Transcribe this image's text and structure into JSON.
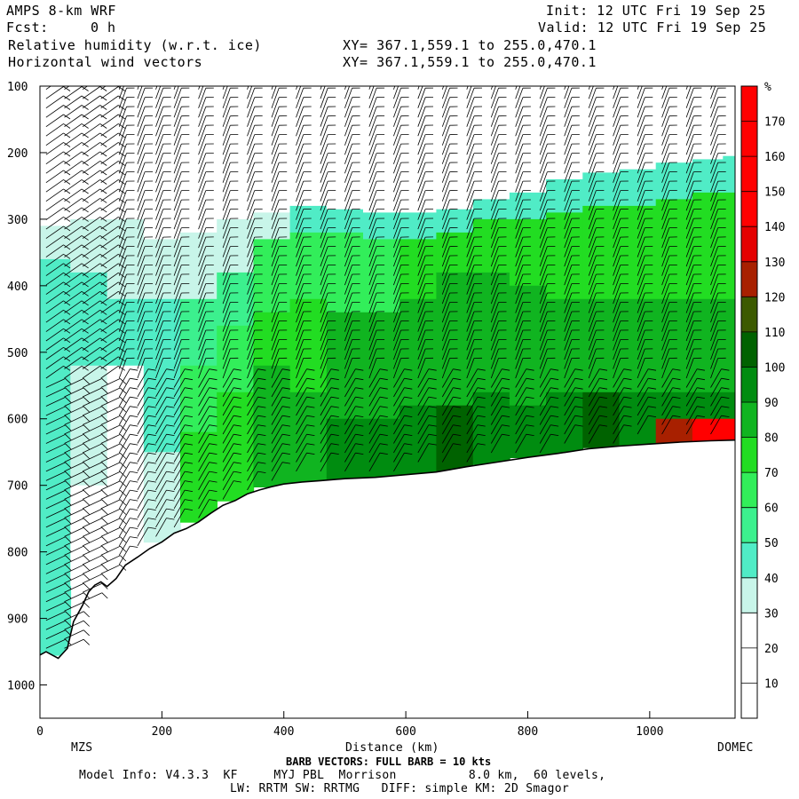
{
  "header": {
    "model": "AMPS 8-km WRF",
    "fcst_label": "Fcst:",
    "fcst_value": "0 h",
    "field1": "Relative humidity (w.r.t. ice)",
    "field2": "Horizontal wind vectors",
    "xy1": "XY= 367.1,559.1 to 255.0,470.1",
    "xy2": "XY= 367.1,559.1 to 255.0,470.1",
    "init": "Init: 12 UTC Fri 19 Sep 25",
    "valid": "Valid: 12 UTC Fri 19 Sep 25"
  },
  "footer": {
    "barb_note": "BARB VECTORS: FULL BARB = 10 kts",
    "model_info": "Model Info: V4.3.3  KF     MYJ PBL  Morrison          8.0 km,  60 levels,",
    "physics": "LW: RRTM SW: RRTMG   DIFF: simple KM: 2D Smagor"
  },
  "colors": {
    "bins": [
      "#ffffff",
      "#ffffff",
      "#ffffff",
      "#c8f5e9",
      "#50ecc6",
      "#3cf08e",
      "#32ee5a",
      "#22dd22",
      "#10b420",
      "#008c10",
      "#006200",
      "#3c5a00",
      "#a82000",
      "#e40000",
      "#ff0000",
      "#ff0000",
      "#ff0000",
      "#ff0000"
    ],
    "terrain_line": "#000000"
  },
  "chart_data": {
    "type": "heatmap",
    "title": "Relative humidity (w.r.t. ice)",
    "xlabel": "Distance (km)",
    "ylabel": "",
    "x_ticks": [
      0,
      200,
      400,
      600,
      800,
      1000
    ],
    "xlim": [
      0,
      1140
    ],
    "y_ticks": [
      100,
      200,
      300,
      400,
      500,
      600,
      700,
      800,
      900,
      1000
    ],
    "ylim": [
      1050,
      100
    ],
    "x_end_labels": [
      "MZS",
      "DOMEC"
    ],
    "colorbar": {
      "unit": "%",
      "levels": [
        10,
        20,
        30,
        40,
        50,
        60,
        70,
        80,
        90,
        100,
        110,
        120,
        130,
        140,
        150,
        160,
        170
      ]
    },
    "terrain_surface_hpa": [
      [
        0,
        955
      ],
      [
        10,
        950
      ],
      [
        20,
        955
      ],
      [
        30,
        960
      ],
      [
        45,
        945
      ],
      [
        55,
        905
      ],
      [
        70,
        880
      ],
      [
        80,
        860
      ],
      [
        90,
        850
      ],
      [
        100,
        845
      ],
      [
        110,
        852
      ],
      [
        125,
        840
      ],
      [
        140,
        820
      ],
      [
        160,
        808
      ],
      [
        180,
        795
      ],
      [
        200,
        785
      ],
      [
        220,
        772
      ],
      [
        240,
        765
      ],
      [
        260,
        755
      ],
      [
        280,
        742
      ],
      [
        300,
        730
      ],
      [
        320,
        723
      ],
      [
        340,
        713
      ],
      [
        360,
        707
      ],
      [
        380,
        702
      ],
      [
        400,
        698
      ],
      [
        430,
        695
      ],
      [
        460,
        693
      ],
      [
        500,
        690
      ],
      [
        550,
        688
      ],
      [
        600,
        684
      ],
      [
        650,
        680
      ],
      [
        700,
        672
      ],
      [
        750,
        665
      ],
      [
        800,
        658
      ],
      [
        850,
        652
      ],
      [
        900,
        645
      ],
      [
        950,
        641
      ],
      [
        1000,
        638
      ],
      [
        1050,
        635
      ],
      [
        1100,
        633
      ],
      [
        1140,
        632
      ]
    ],
    "moist_top_hpa": [
      [
        0,
        310
      ],
      [
        60,
        300
      ],
      [
        120,
        300
      ],
      [
        200,
        330
      ],
      [
        260,
        320
      ],
      [
        300,
        300
      ],
      [
        380,
        290
      ],
      [
        460,
        280
      ],
      [
        560,
        290
      ],
      [
        640,
        290
      ],
      [
        700,
        280
      ],
      [
        780,
        260
      ],
      [
        860,
        240
      ],
      [
        940,
        225
      ],
      [
        1000,
        220
      ],
      [
        1060,
        210
      ],
      [
        1140,
        205
      ]
    ],
    "rh_profiles": [
      {
        "x": 20,
        "layers": [
          [
            100,
            310,
            10
          ],
          [
            310,
            360,
            35
          ],
          [
            360,
            600,
            45
          ],
          [
            600,
            955,
            40
          ]
        ]
      },
      {
        "x": 80,
        "layers": [
          [
            100,
            300,
            10
          ],
          [
            300,
            380,
            35
          ],
          [
            380,
            520,
            45
          ],
          [
            520,
            700,
            35
          ],
          [
            700,
            850,
            15
          ]
        ]
      },
      {
        "x": 140,
        "layers": [
          [
            100,
            300,
            10
          ],
          [
            300,
            420,
            35
          ],
          [
            420,
            520,
            45
          ],
          [
            520,
            820,
            20
          ]
        ]
      },
      {
        "x": 200,
        "layers": [
          [
            100,
            330,
            10
          ],
          [
            330,
            420,
            30
          ],
          [
            420,
            500,
            45
          ],
          [
            500,
            650,
            40
          ],
          [
            650,
            785,
            35
          ]
        ]
      },
      {
        "x": 260,
        "layers": [
          [
            100,
            320,
            10
          ],
          [
            320,
            420,
            35
          ],
          [
            420,
            520,
            55
          ],
          [
            520,
            620,
            65
          ],
          [
            620,
            755,
            75
          ]
        ]
      },
      {
        "x": 320,
        "layers": [
          [
            100,
            300,
            10
          ],
          [
            300,
            380,
            35
          ],
          [
            380,
            460,
            55
          ],
          [
            460,
            560,
            65
          ],
          [
            560,
            723,
            75
          ]
        ]
      },
      {
        "x": 380,
        "layers": [
          [
            100,
            290,
            10
          ],
          [
            290,
            330,
            35
          ],
          [
            330,
            440,
            65
          ],
          [
            440,
            520,
            75
          ],
          [
            520,
            702,
            85
          ]
        ]
      },
      {
        "x": 440,
        "layers": [
          [
            100,
            280,
            10
          ],
          [
            280,
            320,
            45
          ],
          [
            320,
            420,
            65
          ],
          [
            420,
            560,
            75
          ],
          [
            560,
            695,
            85
          ]
        ]
      },
      {
        "x": 500,
        "layers": [
          [
            100,
            285,
            10
          ],
          [
            285,
            320,
            45
          ],
          [
            320,
            440,
            65
          ],
          [
            440,
            600,
            85
          ],
          [
            600,
            690,
            95
          ]
        ]
      },
      {
        "x": 560,
        "layers": [
          [
            100,
            290,
            10
          ],
          [
            290,
            330,
            45
          ],
          [
            330,
            440,
            65
          ],
          [
            440,
            600,
            85
          ],
          [
            600,
            688,
            95
          ]
        ]
      },
      {
        "x": 620,
        "layers": [
          [
            100,
            290,
            10
          ],
          [
            290,
            330,
            45
          ],
          [
            330,
            420,
            75
          ],
          [
            420,
            580,
            85
          ],
          [
            580,
            684,
            95
          ]
        ]
      },
      {
        "x": 680,
        "layers": [
          [
            100,
            285,
            10
          ],
          [
            285,
            320,
            45
          ],
          [
            320,
            380,
            75
          ],
          [
            380,
            580,
            85
          ],
          [
            580,
            680,
            105
          ]
        ]
      },
      {
        "x": 740,
        "layers": [
          [
            100,
            270,
            10
          ],
          [
            270,
            300,
            45
          ],
          [
            300,
            380,
            75
          ],
          [
            380,
            560,
            85
          ],
          [
            560,
            668,
            95
          ]
        ]
      },
      {
        "x": 800,
        "layers": [
          [
            100,
            260,
            10
          ],
          [
            260,
            300,
            45
          ],
          [
            300,
            400,
            75
          ],
          [
            400,
            580,
            85
          ],
          [
            580,
            658,
            95
          ]
        ]
      },
      {
        "x": 860,
        "layers": [
          [
            100,
            240,
            10
          ],
          [
            240,
            290,
            45
          ],
          [
            290,
            420,
            75
          ],
          [
            420,
            560,
            85
          ],
          [
            560,
            652,
            95
          ]
        ]
      },
      {
        "x": 920,
        "layers": [
          [
            100,
            230,
            10
          ],
          [
            230,
            280,
            45
          ],
          [
            280,
            420,
            75
          ],
          [
            420,
            560,
            85
          ],
          [
            560,
            643,
            105
          ]
        ]
      },
      {
        "x": 980,
        "layers": [
          [
            100,
            225,
            10
          ],
          [
            225,
            280,
            45
          ],
          [
            280,
            420,
            75
          ],
          [
            420,
            560,
            85
          ],
          [
            560,
            640,
            95
          ]
        ]
      },
      {
        "x": 1040,
        "layers": [
          [
            100,
            215,
            10
          ],
          [
            215,
            270,
            45
          ],
          [
            270,
            420,
            75
          ],
          [
            420,
            560,
            85
          ],
          [
            560,
            600,
            95
          ],
          [
            600,
            636,
            125
          ]
        ]
      },
      {
        "x": 1100,
        "layers": [
          [
            100,
            210,
            10
          ],
          [
            210,
            260,
            45
          ],
          [
            260,
            420,
            75
          ],
          [
            420,
            560,
            85
          ],
          [
            560,
            600,
            95
          ],
          [
            600,
            633,
            145
          ]
        ]
      },
      {
        "x": 1140,
        "layers": [
          [
            100,
            205,
            10
          ],
          [
            205,
            260,
            45
          ],
          [
            260,
            420,
            75
          ],
          [
            420,
            560,
            85
          ],
          [
            560,
            600,
            95
          ],
          [
            600,
            632,
            155
          ]
        ]
      }
    ],
    "wind_barb_columns_km": [
      10,
      40,
      70,
      100,
      130,
      160,
      190,
      220,
      260,
      300,
      340,
      380,
      420,
      460,
      500,
      540,
      580,
      620,
      660,
      700,
      740,
      780,
      820,
      860,
      900,
      940,
      980,
      1020,
      1060,
      1100,
      1140
    ]
  }
}
